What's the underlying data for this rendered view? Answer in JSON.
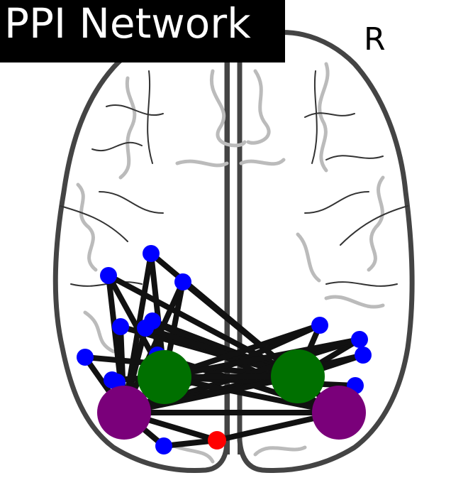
{
  "title": "PPI Network",
  "orientation_label": "R",
  "colors": {
    "title_bg": "#000000",
    "title_text": "#ffffff",
    "brain_outline": "#444444",
    "sulci_light": "#bbbbbb",
    "sulci_dark": "#333333",
    "edge": "#111111",
    "node_blue": "#0000ff",
    "node_green": "#007000",
    "node_purple": "#7a007a",
    "node_red": "#ff0000"
  },
  "nodes": [
    {
      "id": "b1",
      "kind": "blue"
    },
    {
      "id": "b2",
      "kind": "blue"
    },
    {
      "id": "b3",
      "kind": "blue"
    },
    {
      "id": "b4",
      "kind": "blue"
    },
    {
      "id": "b5",
      "kind": "blue"
    },
    {
      "id": "b6",
      "kind": "blue"
    },
    {
      "id": "b7",
      "kind": "blue"
    },
    {
      "id": "b8",
      "kind": "blue"
    },
    {
      "id": "b9",
      "kind": "blue"
    },
    {
      "id": "b10",
      "kind": "blue"
    },
    {
      "id": "b11",
      "kind": "blue"
    },
    {
      "id": "b12",
      "kind": "blue"
    },
    {
      "id": "b13",
      "kind": "blue"
    },
    {
      "id": "b14",
      "kind": "blue"
    },
    {
      "id": "b15",
      "kind": "blue"
    },
    {
      "id": "b16",
      "kind": "blue"
    },
    {
      "id": "g1",
      "kind": "green"
    },
    {
      "id": "g2",
      "kind": "green"
    },
    {
      "id": "p1",
      "kind": "purple"
    },
    {
      "id": "p2",
      "kind": "purple"
    },
    {
      "id": "r1",
      "kind": "red"
    }
  ],
  "edges": [
    [
      "b1",
      "g1"
    ],
    [
      "b1",
      "p1"
    ],
    [
      "b1",
      "g2"
    ],
    [
      "b2",
      "g1"
    ],
    [
      "b2",
      "p1"
    ],
    [
      "b2",
      "g2"
    ],
    [
      "b3",
      "g1"
    ],
    [
      "b3",
      "p1"
    ],
    [
      "b3",
      "g2"
    ],
    [
      "b4",
      "p1"
    ],
    [
      "b4",
      "g2"
    ],
    [
      "b5",
      "g1"
    ],
    [
      "b5",
      "g2"
    ],
    [
      "b5",
      "p2"
    ],
    [
      "b6",
      "g2"
    ],
    [
      "b6",
      "p1"
    ],
    [
      "b7",
      "p1"
    ],
    [
      "b7",
      "g2"
    ],
    [
      "b8",
      "p1"
    ],
    [
      "b8",
      "g1"
    ],
    [
      "b9",
      "p1"
    ],
    [
      "b10",
      "g1"
    ],
    [
      "b10",
      "p2"
    ],
    [
      "b11",
      "g2"
    ],
    [
      "b11",
      "p1"
    ],
    [
      "b11",
      "g1"
    ],
    [
      "b12",
      "g2"
    ],
    [
      "b12",
      "p1"
    ],
    [
      "b12",
      "g1"
    ],
    [
      "b13",
      "g2"
    ],
    [
      "b13",
      "p1"
    ],
    [
      "b14",
      "p2"
    ],
    [
      "b14",
      "g1"
    ],
    [
      "b15",
      "p1"
    ],
    [
      "b15",
      "r1"
    ],
    [
      "b16",
      "g1"
    ],
    [
      "g1",
      "g2"
    ],
    [
      "g1",
      "p1"
    ],
    [
      "g1",
      "p2"
    ],
    [
      "g2",
      "p1"
    ],
    [
      "g2",
      "p2"
    ],
    [
      "p1",
      "p2"
    ],
    [
      "p1",
      "r1"
    ],
    [
      "r1",
      "p2"
    ]
  ]
}
